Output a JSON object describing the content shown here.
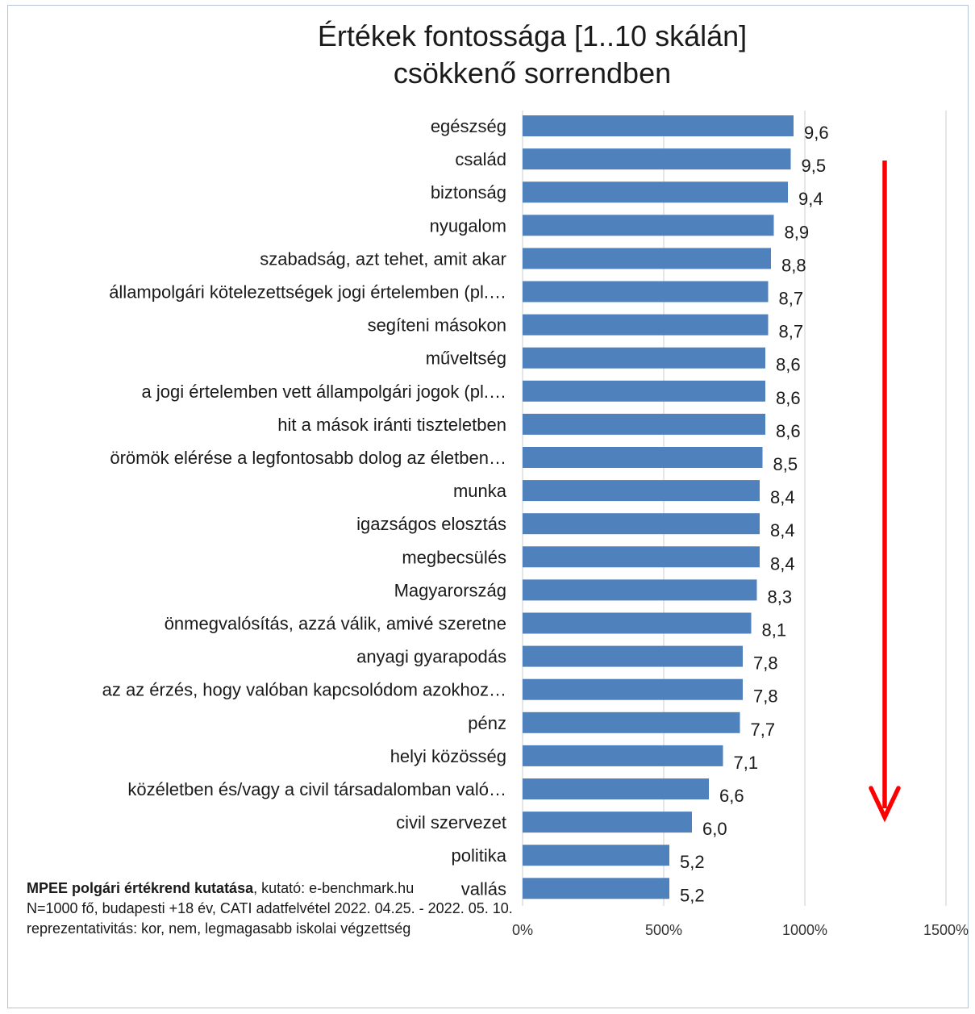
{
  "chart_data": {
    "type": "bar",
    "orientation": "horizontal",
    "title": [
      "Értékek fontossága [1..10 skálán]",
      "csökkenő sorrendben"
    ],
    "categories": [
      "egészség",
      "család",
      "biztonság",
      "nyugalom",
      "szabadság, azt tehet, amit akar",
      "állampolgári kötelezettségek jogi értelemben (pl.…",
      "segíteni másokon",
      "műveltség",
      "a jogi értelemben vett állampolgári jogok (pl.…",
      "hit a mások iránti tiszteletben",
      "örömök elérése a legfontosabb dolog az életben…",
      "munka",
      "igazságos elosztás",
      "megbecsülés",
      "Magyarország",
      "önmegvalósítás, azzá válik, amivé szeretne",
      "anyagi gyarapodás",
      "az az érzés, hogy valóban kapcsolódom azokhoz…",
      "pénz",
      "helyi közösség",
      "közéletben és/vagy a civil társadalomban való…",
      "civil szervezet",
      "politika",
      "vallás"
    ],
    "values": [
      9.6,
      9.5,
      9.4,
      8.9,
      8.8,
      8.7,
      8.7,
      8.6,
      8.6,
      8.6,
      8.5,
      8.4,
      8.4,
      8.4,
      8.3,
      8.1,
      7.8,
      7.8,
      7.7,
      7.1,
      6.6,
      6.0,
      5.2,
      5.2
    ],
    "value_labels": [
      "9,6",
      "9,5",
      "9,4",
      "8,9",
      "8,8",
      "8,7",
      "8,7",
      "8,6",
      "8,6",
      "8,6",
      "8,5",
      "8,4",
      "8,4",
      "8,4",
      "8,3",
      "8,1",
      "7,8",
      "7,8",
      "7,7",
      "7,1",
      "6,6",
      "6,0",
      "5,2",
      "5,2"
    ],
    "x_ticks": [
      "0%",
      "500%",
      "1000%",
      "1500%"
    ],
    "xlim": [
      0,
      15
    ],
    "grid": "vertical",
    "bar_color": "#4f81bd",
    "arrow_color": "#ff0000",
    "arrow_direction": "down"
  },
  "footer": {
    "line1_bold": "MPEE polgári értékrend kutatása",
    "line1_rest": ", kutató: e-benchmark.hu",
    "line2": "N=1000 fő, budapesti +18 év, CATI adatfelvétel 2022. 04.25. - 2022. 05. 10.",
    "line3": "reprezentativitás: kor, nem, legmagasabb iskolai végzettség"
  }
}
